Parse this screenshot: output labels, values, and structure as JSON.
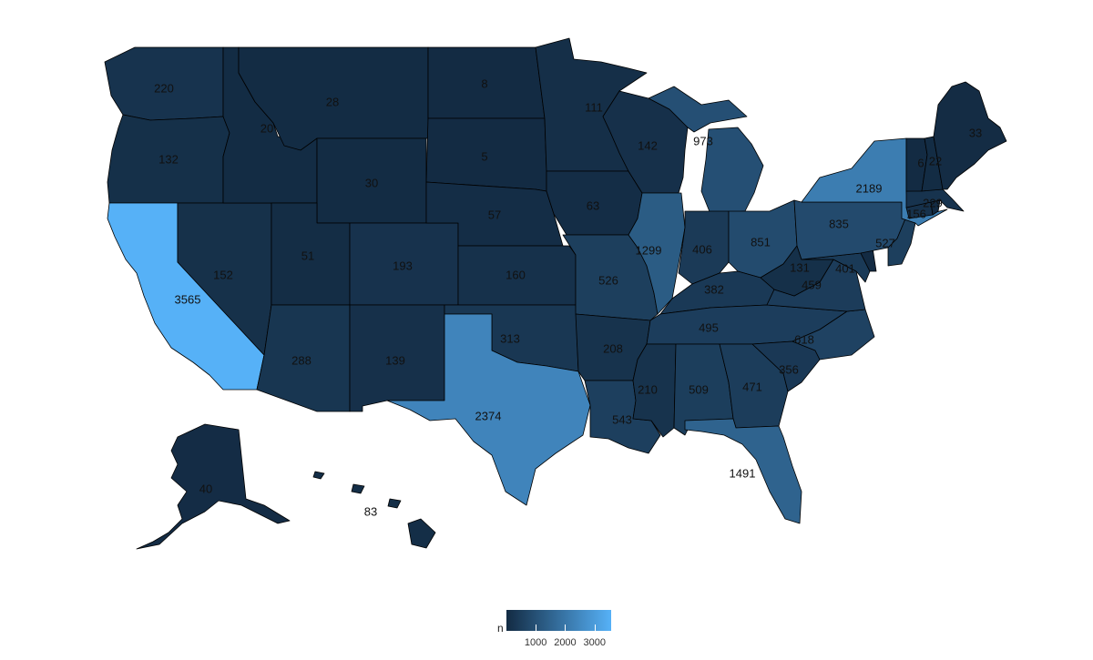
{
  "legend": {
    "title": "n",
    "min": 5,
    "max": 3565,
    "ticks": [
      1000,
      2000,
      3000
    ],
    "color_low": "#132b43",
    "color_high": "#56b1f7"
  },
  "states": [
    {
      "id": "WA",
      "value": 220
    },
    {
      "id": "OR",
      "value": 132
    },
    {
      "id": "CA",
      "value": 3565
    },
    {
      "id": "NV",
      "value": 152
    },
    {
      "id": "ID",
      "value": 20
    },
    {
      "id": "MT",
      "value": 28
    },
    {
      "id": "WY",
      "value": 30
    },
    {
      "id": "UT",
      "value": 51
    },
    {
      "id": "AZ",
      "value": 288
    },
    {
      "id": "CO",
      "value": 193
    },
    {
      "id": "NM",
      "value": 139
    },
    {
      "id": "ND",
      "value": 8
    },
    {
      "id": "SD",
      "value": 5
    },
    {
      "id": "NE",
      "value": 57
    },
    {
      "id": "KS",
      "value": 160
    },
    {
      "id": "OK",
      "value": 313
    },
    {
      "id": "TX",
      "value": 2374
    },
    {
      "id": "MN",
      "value": 111
    },
    {
      "id": "IA",
      "value": 63
    },
    {
      "id": "MO",
      "value": 526
    },
    {
      "id": "AR",
      "value": 208
    },
    {
      "id": "LA",
      "value": 543
    },
    {
      "id": "WI",
      "value": 142
    },
    {
      "id": "IL",
      "value": 1299
    },
    {
      "id": "MI",
      "value": 973
    },
    {
      "id": "IN",
      "value": 406
    },
    {
      "id": "OH",
      "value": 851
    },
    {
      "id": "KY",
      "value": 382
    },
    {
      "id": "TN",
      "value": 495
    },
    {
      "id": "MS",
      "value": 210
    },
    {
      "id": "AL",
      "value": 509
    },
    {
      "id": "GA",
      "value": 471
    },
    {
      "id": "FL",
      "value": 1491
    },
    {
      "id": "SC",
      "value": 356
    },
    {
      "id": "NC",
      "value": 618
    },
    {
      "id": "VA",
      "value": 459
    },
    {
      "id": "WV",
      "value": 131
    },
    {
      "id": "MD",
      "value": 401
    },
    {
      "id": "PA",
      "value": 835
    },
    {
      "id": "NJ",
      "value": 527
    },
    {
      "id": "NY",
      "value": 2189
    },
    {
      "id": "CT",
      "value": 156
    },
    {
      "id": "MA",
      "value": 229
    },
    {
      "id": "VT",
      "value": 6
    },
    {
      "id": "NH",
      "value": 22
    },
    {
      "id": "ME",
      "value": 33
    },
    {
      "id": "AK",
      "value": 40
    },
    {
      "id": "HI",
      "value": 83
    },
    {
      "id": "DE"
    },
    {
      "id": "RI"
    }
  ]
}
